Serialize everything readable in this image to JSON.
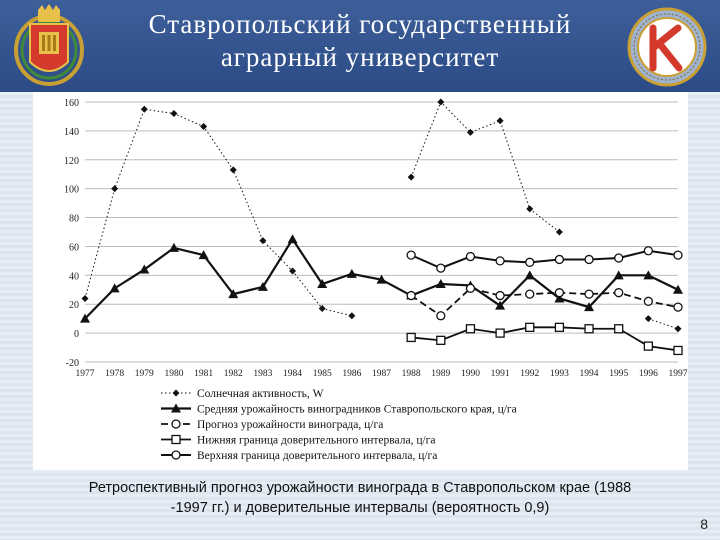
{
  "header": {
    "title_line1": "Ставропольский государственный",
    "title_line2": "аграрный университет"
  },
  "caption": {
    "line1": "Ретроспективный прогноз урожайности винограда в Ставропольском крае (1988",
    "line2": "-1997 гг.) и доверительные интервалы (вероятность 0,9)"
  },
  "page_number": "8",
  "colors": {
    "header_bg": "#2f4f8a",
    "series": "#111111"
  },
  "chart_data": {
    "type": "line",
    "x": [
      1977,
      1978,
      1979,
      1980,
      1981,
      1982,
      1983,
      1984,
      1985,
      1986,
      1987,
      1988,
      1989,
      1990,
      1991,
      1992,
      1993,
      1994,
      1995,
      1996,
      1997
    ],
    "ylim": [
      -20,
      160
    ],
    "yticks": [
      -20,
      0,
      20,
      40,
      60,
      80,
      100,
      120,
      140,
      160
    ],
    "grid": true,
    "legend_position": "bottom",
    "series": [
      {
        "name": "Солнечная активность, W",
        "marker": "diamond",
        "dash": "dotted",
        "values": [
          24,
          100,
          155,
          152,
          143,
          113,
          64,
          43,
          17,
          12,
          null,
          108,
          160,
          139,
          147,
          86,
          70,
          null,
          null,
          10,
          3
        ]
      },
      {
        "name": "Средняя урожайность виноградников Ставропольского края, ц/га",
        "marker": "triangle",
        "dash": "solid",
        "values": [
          10,
          31,
          44,
          59,
          54,
          27,
          32,
          65,
          34,
          41,
          37,
          26,
          34,
          33,
          19,
          40,
          24,
          18,
          40,
          40,
          30
        ]
      },
      {
        "name": "Прогноз урожайности винограда, ц/га",
        "marker": "circle",
        "dash": "dashed",
        "values": [
          null,
          null,
          null,
          null,
          null,
          null,
          null,
          null,
          null,
          null,
          null,
          26,
          12,
          31,
          26,
          27,
          28,
          27,
          28,
          22,
          18
        ]
      },
      {
        "name": "Нижняя граница доверительного интервала, ц/га",
        "marker": "square",
        "dash": "solid",
        "values": [
          null,
          null,
          null,
          null,
          null,
          null,
          null,
          null,
          null,
          null,
          null,
          -3,
          -5,
          3,
          0,
          4,
          4,
          3,
          3,
          -9,
          -12
        ]
      },
      {
        "name": "Верхняя граница доверительного интервала, ц/га",
        "marker": "circle",
        "dash": "solid",
        "values": [
          null,
          null,
          null,
          null,
          null,
          null,
          null,
          null,
          null,
          null,
          null,
          54,
          45,
          53,
          50,
          49,
          51,
          51,
          52,
          57,
          54
        ]
      }
    ]
  }
}
